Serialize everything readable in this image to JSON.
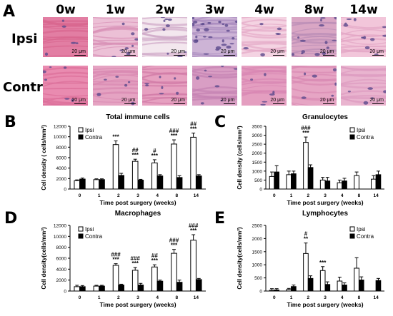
{
  "panel_a": {
    "letter": "A",
    "timepoints": [
      "0w",
      "1w",
      "2w",
      "3w",
      "4w",
      "8w",
      "14w"
    ],
    "rows": [
      "Ipsi",
      "Contra"
    ],
    "scale_label": "20 μm"
  },
  "colors": {
    "ipsi_fill": "#ffffff",
    "contra_fill": "#000000",
    "stain_pink": "#e9a3c0",
    "nuclei": "#5b4a8c"
  },
  "chart_data": [
    {
      "letter": "B",
      "type": "bar",
      "title": "Total immune cells",
      "xlabel": "Time post surgery (weeks)",
      "ylabel": "Cell density ( cells/mm²)",
      "categories": [
        "0",
        "1",
        "2",
        "3",
        "4",
        "8",
        "14"
      ],
      "ylim": [
        0,
        12000
      ],
      "yticks": [
        "0",
        "2000",
        "4000",
        "6000",
        "8000",
        "10000",
        "12000"
      ],
      "legend": [
        "Ipsi",
        "Contra"
      ],
      "legend_position": "top-left",
      "series": [
        {
          "name": "Ipsi",
          "values": [
            1600,
            1800,
            8500,
            5300,
            5000,
            8600,
            9900
          ],
          "errors": [
            150,
            150,
            700,
            400,
            600,
            800,
            800
          ]
        },
        {
          "name": "Contra",
          "values": [
            1900,
            1800,
            2600,
            1700,
            2500,
            2200,
            2500
          ],
          "errors": [
            200,
            150,
            400,
            150,
            250,
            350,
            250
          ]
        }
      ],
      "annotations": [
        {
          "category": "2",
          "lines": [
            "***"
          ]
        },
        {
          "category": "3",
          "lines": [
            "##",
            "***"
          ]
        },
        {
          "category": "4",
          "lines": [
            "#",
            "***"
          ]
        },
        {
          "category": "8",
          "lines": [
            "###",
            "***"
          ]
        },
        {
          "category": "14",
          "lines": [
            "##",
            "***"
          ]
        }
      ]
    },
    {
      "letter": "C",
      "type": "bar",
      "title": "Granulocytes",
      "xlabel": "Time post surgery (weeks)",
      "ylabel": "Cell density (cells/mm²)",
      "categories": [
        "0",
        "1",
        "2",
        "3",
        "4",
        "8",
        "14"
      ],
      "ylim": [
        0,
        3500
      ],
      "yticks": [
        "0",
        "500",
        "1000",
        "1500",
        "2000",
        "2500",
        "3000",
        "3500"
      ],
      "legend": [
        "Ipsi",
        "Contra"
      ],
      "legend_position": "top-right",
      "series": [
        {
          "name": "Ipsi",
          "values": [
            700,
            800,
            2600,
            500,
            350,
            750,
            550
          ],
          "errors": [
            250,
            200,
            300,
            150,
            150,
            200,
            200
          ]
        },
        {
          "name": "Contra",
          "values": [
            950,
            850,
            1200,
            450,
            450,
            0,
            800
          ],
          "errors": [
            350,
            150,
            150,
            200,
            150,
            0,
            200
          ]
        }
      ],
      "annotations": [
        {
          "category": "2",
          "lines": [
            "###",
            "***"
          ]
        }
      ]
    },
    {
      "letter": "D",
      "type": "bar",
      "title": "Macrophages",
      "xlabel": "Time post surgery (weeks)",
      "ylabel": "Cell density(cells/mm²)",
      "categories": [
        "0",
        "1",
        "2",
        "3",
        "4",
        "8",
        "14"
      ],
      "ylim": [
        0,
        12000
      ],
      "yticks": [
        "0",
        "2000",
        "4000",
        "6000",
        "8000",
        "10000",
        "12000"
      ],
      "legend": [
        "Ipsi",
        "Contra"
      ],
      "legend_position": "top-left",
      "series": [
        {
          "name": "Ipsi",
          "values": [
            800,
            900,
            4700,
            3800,
            4400,
            6900,
            9300
          ],
          "errors": [
            250,
            150,
            300,
            500,
            400,
            700,
            1000
          ]
        },
        {
          "name": "Contra",
          "values": [
            800,
            900,
            1100,
            1100,
            1800,
            1600,
            2100
          ],
          "errors": [
            200,
            150,
            150,
            300,
            200,
            400,
            200
          ]
        }
      ],
      "annotations": [
        {
          "category": "2",
          "lines": [
            "###",
            "***"
          ]
        },
        {
          "category": "3",
          "lines": [
            "###",
            "***"
          ]
        },
        {
          "category": "4",
          "lines": [
            "##",
            "***"
          ]
        },
        {
          "category": "8",
          "lines": [
            "###",
            "***"
          ]
        },
        {
          "category": "14",
          "lines": [
            "###",
            "***"
          ]
        }
      ]
    },
    {
      "letter": "E",
      "type": "bar",
      "title": "Lymphocytes",
      "xlabel": "Time post surgery (weeks)",
      "ylabel": "Cell density(cells/mm²)",
      "categories": [
        "0",
        "1",
        "2",
        "3",
        "4",
        "8",
        "14"
      ],
      "ylim": [
        0,
        2500
      ],
      "yticks": [
        "0",
        "500",
        "1000",
        "1500",
        "2000",
        "2500"
      ],
      "legend": [
        "Ipsi",
        "Contra"
      ],
      "legend_position": "top-right",
      "series": [
        {
          "name": "Ipsi",
          "values": [
            30,
            60,
            1430,
            780,
            380,
            870,
            0
          ],
          "errors": [
            60,
            40,
            400,
            150,
            150,
            400,
            0
          ]
        },
        {
          "name": "Contra",
          "values": [
            40,
            170,
            480,
            250,
            230,
            420,
            400
          ],
          "errors": [
            50,
            60,
            100,
            100,
            80,
            120,
            80
          ]
        }
      ],
      "annotations": [
        {
          "category": "2",
          "lines": [
            "#",
            "**"
          ]
        },
        {
          "category": "3",
          "lines": [
            "***"
          ]
        }
      ]
    }
  ]
}
